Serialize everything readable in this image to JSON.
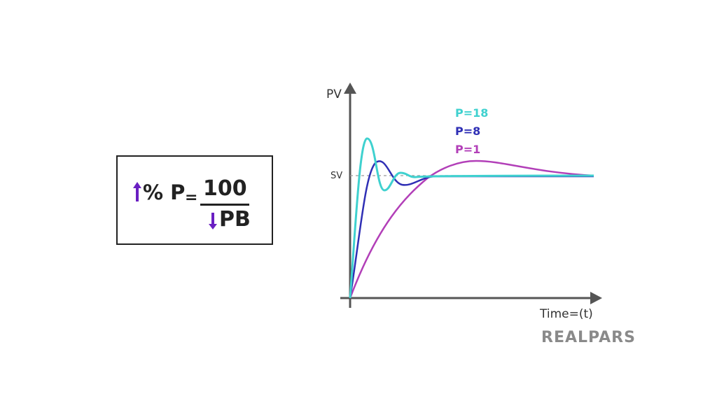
{
  "formula": {
    "percent_p": "% P",
    "equals": "=",
    "numerator": "100",
    "denominator": "PB",
    "arrow_color": "#6a1fc2"
  },
  "chart_data": {
    "type": "line",
    "ylabel": "PV",
    "xlabel": "Time=(t)",
    "setpoint_label": "SV",
    "series": [
      {
        "name": "P=18",
        "color": "#3fd1cf"
      },
      {
        "name": "P=8",
        "color": "#2f2fb5"
      },
      {
        "name": "P=1",
        "color": "#b23fb8"
      }
    ]
  },
  "logo": {
    "text": "REALPARS",
    "color": "#8a8a8a"
  }
}
